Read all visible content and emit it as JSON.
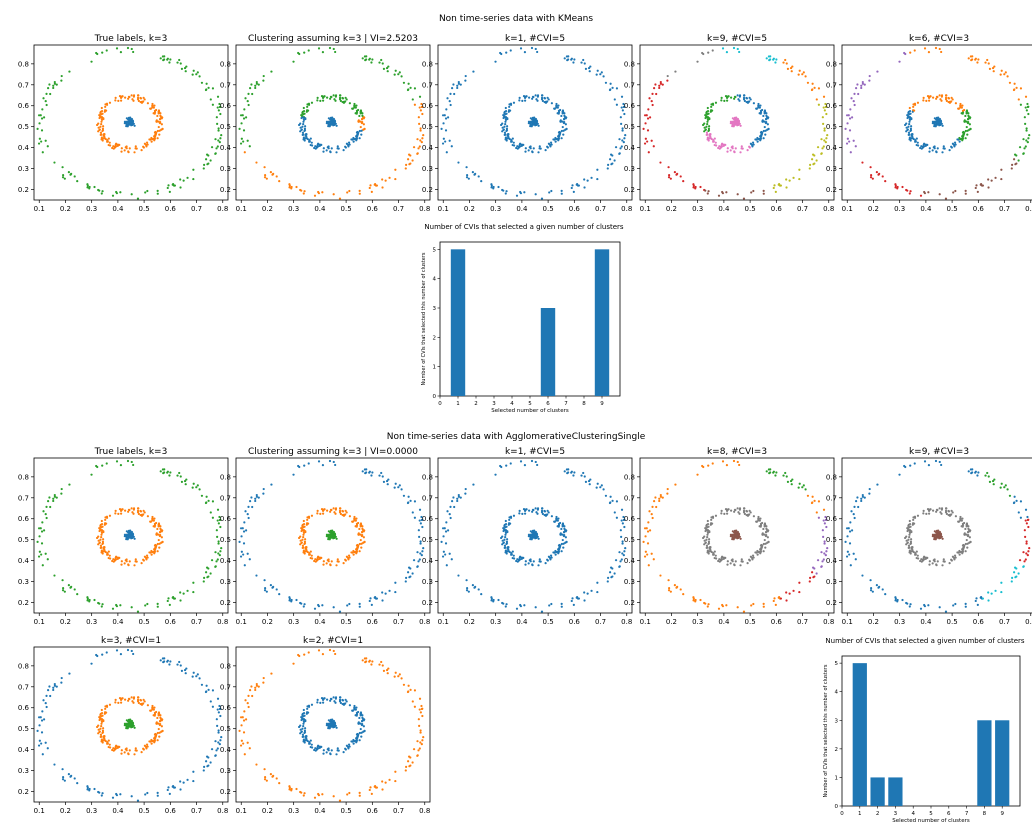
{
  "suptitles": {
    "kmeans": "Non time-series data with KMeans",
    "agglo": "Non time-series data with AgglomerativeClusteringSingle"
  },
  "palette": [
    "#1f77b4",
    "#ff7f0e",
    "#2ca02c",
    "#d62728",
    "#9467bd",
    "#8c564b",
    "#e377c2",
    "#7f7f7f",
    "#bcbd22",
    "#17becf"
  ],
  "axes": {
    "xlim": [
      0.08,
      0.82
    ],
    "ylim": [
      0.15,
      0.89
    ],
    "xticks": [
      0.1,
      0.2,
      0.3,
      0.4,
      0.5,
      0.6,
      0.7,
      0.8
    ],
    "xtick_labels": [
      "0.1",
      "0.2",
      "0.3",
      "0.4",
      "0.5",
      "0.6",
      "0.7",
      "0.8"
    ],
    "yticks": [
      0.2,
      0.3,
      0.4,
      0.5,
      0.6,
      0.7,
      0.8
    ],
    "ytick_labels": [
      "0.2",
      "0.3",
      "0.4",
      "0.5",
      "0.6",
      "0.7",
      "0.8"
    ]
  },
  "chart_data": [
    {
      "type": "scatter",
      "id": "km-true",
      "title": "True labels, k=3",
      "coloring": "true3"
    },
    {
      "type": "scatter",
      "id": "km-k3",
      "title": "Clustering assuming k=3 | VI=2.5203",
      "coloring": "km3"
    },
    {
      "type": "scatter",
      "id": "km-k1",
      "title": "k=1, #CVI=5",
      "coloring": "one"
    },
    {
      "type": "scatter",
      "id": "km-k9",
      "title": "k=9, #CVI=5",
      "coloring": "km9"
    },
    {
      "type": "scatter",
      "id": "km-k6",
      "title": "k=6, #CVI=3",
      "coloring": "km6"
    },
    {
      "type": "bar",
      "id": "km-bar",
      "title": "Number of CVIs that selected a given number of clusters",
      "xlabel": "Selected number of clusters",
      "ylabel": "Number of CVIs that selected this number of clusters",
      "x": [
        1,
        6,
        9
      ],
      "values": [
        5,
        3,
        5
      ],
      "xlim": [
        0,
        10
      ],
      "ylim": [
        0,
        5.25
      ],
      "xticks": [
        0,
        1,
        2,
        3,
        4,
        5,
        6,
        7,
        8,
        9
      ],
      "xtick_labels": [
        "0",
        "1",
        "2",
        "3",
        "4",
        "5",
        "6",
        "7",
        "8",
        "9"
      ],
      "yticks": [
        0,
        1,
        2,
        3,
        4,
        5
      ],
      "ytick_labels": [
        "0",
        "1",
        "2",
        "3",
        "4",
        "5"
      ]
    },
    {
      "type": "scatter",
      "id": "ag-true",
      "title": "True labels, k=3",
      "coloring": "true3"
    },
    {
      "type": "scatter",
      "id": "ag-k3",
      "title": "Clustering assuming k=3 | VI=0.0000",
      "coloring": "agk3"
    },
    {
      "type": "scatter",
      "id": "ag-k1",
      "title": "k=1, #CVI=5",
      "coloring": "one"
    },
    {
      "type": "scatter",
      "id": "ag-k8",
      "title": "k=8, #CVI=3",
      "coloring": "ag8"
    },
    {
      "type": "scatter",
      "id": "ag-k9",
      "title": "k=9, #CVI=3",
      "coloring": "ag9"
    },
    {
      "type": "scatter",
      "id": "ag-k3b",
      "title": "k=3, #CVI=1",
      "coloring": "agk3b"
    },
    {
      "type": "scatter",
      "id": "ag-k2",
      "title": "k=2, #CVI=1",
      "coloring": "ag2"
    },
    {
      "type": "bar",
      "id": "ag-bar",
      "title": "Number of CVIs that selected a given number of clusters",
      "xlabel": "Selected number of clusters",
      "ylabel": "Number of CVIs that selected this number of clusters",
      "x": [
        1,
        2,
        3,
        8,
        9
      ],
      "values": [
        5,
        1,
        1,
        3,
        3
      ],
      "xlim": [
        0,
        10
      ],
      "ylim": [
        0,
        5.25
      ],
      "xticks": [
        0,
        1,
        2,
        3,
        4,
        5,
        6,
        7,
        8,
        9
      ],
      "xtick_labels": [
        "0",
        "1",
        "2",
        "3",
        "4",
        "5",
        "6",
        "7",
        "8",
        "9"
      ],
      "yticks": [
        0,
        1,
        2,
        3,
        4,
        5
      ],
      "ytick_labels": [
        "0",
        "1",
        "2",
        "3",
        "4",
        "5"
      ]
    }
  ]
}
